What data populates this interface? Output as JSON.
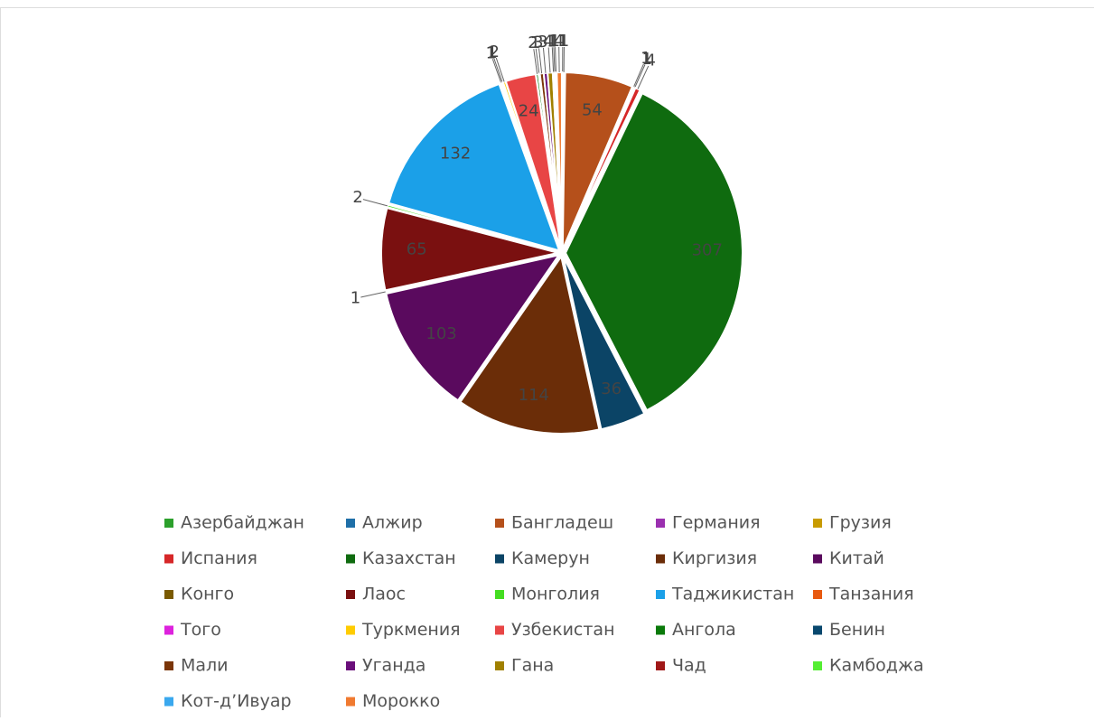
{
  "chart_data": {
    "type": "pie",
    "categories": [
      "Азербайджан",
      "Алжир",
      "Бангладеш",
      "Германия",
      "Грузия",
      "Испания",
      "Казахстан",
      "Камерун",
      "Киргизия",
      "Китай",
      "Конго",
      "Лаос",
      "Монголия",
      "Таджикистан",
      "Танзания",
      "Того",
      "Туркмения",
      "Узбекистан",
      "Ангола",
      "Бенин",
      "Мали",
      "Уганда",
      "Гана",
      "Чад",
      "Камбоджа",
      "Кот-д’Ивуар",
      "Морокко"
    ],
    "values": [
      1,
      1,
      54,
      1,
      1,
      4,
      307,
      36,
      114,
      103,
      1,
      65,
      2,
      132,
      1,
      1,
      2,
      24,
      2,
      1,
      3,
      3,
      4,
      1,
      1,
      1,
      4
    ],
    "colors": [
      "#2ca02c",
      "#1f6fa8",
      "#b5501b",
      "#9b30b0",
      "#c89b00",
      "#d62728",
      "#0f6b0f",
      "#0b4466",
      "#6b2d08",
      "#5a0a5e",
      "#7a5a00",
      "#7a1010",
      "#44dd22",
      "#1ba0e8",
      "#e85a10",
      "#dd22dd",
      "#ffcc00",
      "#e84545",
      "#0a7a0a",
      "#08486e",
      "#7a3508",
      "#6a0f7a",
      "#a08000",
      "#a01818",
      "#55ee33",
      "#3aa8ee",
      "#f07a30"
    ]
  }
}
